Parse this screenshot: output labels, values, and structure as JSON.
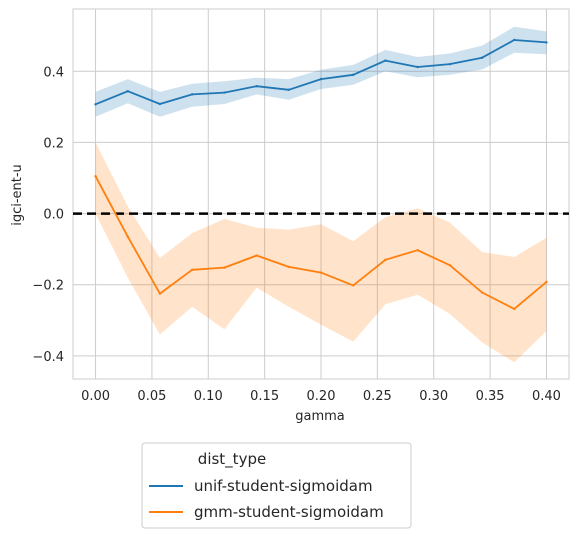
{
  "chart_data": {
    "type": "line",
    "xlabel": "gamma",
    "ylabel": "igci-ent-u",
    "xlim": [
      -0.02,
      0.42
    ],
    "ylim": [
      -0.465,
      0.575
    ],
    "xticks": [
      0.0,
      0.05,
      0.1,
      0.15,
      0.2,
      0.25,
      0.3,
      0.35,
      0.4
    ],
    "xtick_labels": [
      "0.00",
      "0.05",
      "0.10",
      "0.15",
      "0.20",
      "0.25",
      "0.30",
      "0.35",
      "0.40"
    ],
    "yticks": [
      -0.4,
      -0.2,
      0.0,
      0.2,
      0.4
    ],
    "ytick_labels": [
      "−0.4",
      "−0.2",
      "0.0",
      "0.2",
      "0.4"
    ],
    "grid": true,
    "reference_line": {
      "y": 0.0,
      "style": "dashed",
      "color": "#000000"
    },
    "legend": {
      "title": "dist_type",
      "placement": "below-center"
    },
    "x": [
      0.0,
      0.0286,
      0.0571,
      0.0857,
      0.1143,
      0.1429,
      0.1714,
      0.2,
      0.2286,
      0.2571,
      0.2857,
      0.3143,
      0.3429,
      0.3714,
      0.4
    ],
    "series": [
      {
        "name": "unif-student-sigmoidam",
        "color": "#1f77b4",
        "values": [
          0.307,
          0.344,
          0.308,
          0.335,
          0.34,
          0.358,
          0.348,
          0.378,
          0.39,
          0.43,
          0.412,
          0.42,
          0.438,
          0.488,
          0.481
        ],
        "lower": [
          0.272,
          0.31,
          0.272,
          0.3,
          0.308,
          0.335,
          0.32,
          0.35,
          0.362,
          0.4,
          0.383,
          0.39,
          0.405,
          0.452,
          0.448
        ],
        "upper": [
          0.342,
          0.378,
          0.342,
          0.365,
          0.372,
          0.382,
          0.378,
          0.404,
          0.418,
          0.46,
          0.44,
          0.45,
          0.472,
          0.525,
          0.512
        ]
      },
      {
        "name": "gmm-student-sigmoidam",
        "color": "#ff7f0e",
        "values": [
          0.105,
          -0.065,
          -0.225,
          -0.158,
          -0.152,
          -0.118,
          -0.15,
          -0.166,
          -0.202,
          -0.13,
          -0.103,
          -0.145,
          -0.222,
          -0.268,
          -0.192
        ],
        "lower": [
          0.0,
          -0.18,
          -0.34,
          -0.262,
          -0.325,
          -0.208,
          -0.262,
          -0.312,
          -0.36,
          -0.255,
          -0.228,
          -0.282,
          -0.362,
          -0.418,
          -0.33
        ],
        "upper": [
          0.2,
          0.02,
          -0.125,
          -0.055,
          -0.015,
          -0.04,
          -0.045,
          -0.03,
          -0.078,
          -0.01,
          0.015,
          -0.025,
          -0.108,
          -0.122,
          -0.068
        ]
      }
    ]
  }
}
